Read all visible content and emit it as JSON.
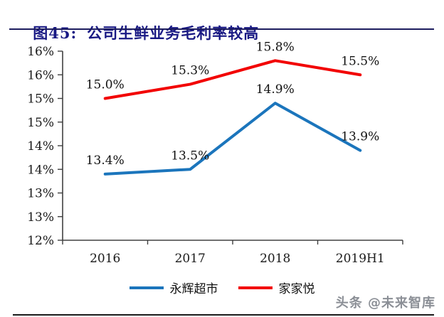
{
  "header": {
    "figure_no": "图45:",
    "title": "公司生鲜业务毛利率较高",
    "accent_color": "#191984"
  },
  "watermark": {
    "text": "头条 @未来智库",
    "color": "#8B8F96"
  },
  "chart_data": {
    "type": "line",
    "title": "公司生鲜业务毛利率较高",
    "categories": [
      "2016",
      "2017",
      "2018",
      "2019H1"
    ],
    "series": [
      {
        "name": "永辉超市",
        "color": "#1B75BC",
        "values": [
          13.4,
          13.5,
          14.9,
          13.9
        ],
        "labels": [
          "13.4%",
          "13.5%",
          "14.9%",
          "13.9%"
        ]
      },
      {
        "name": "家家悦",
        "color": "#F20000",
        "values": [
          15.0,
          15.3,
          15.8,
          15.5
        ],
        "labels": [
          "15.0%",
          "15.3%",
          "15.8%",
          "15.5%"
        ]
      }
    ],
    "y_axis": {
      "min": 12,
      "max": 16,
      "tick_step": 0.5,
      "tick_labels": [
        "16%",
        "16%",
        "15%",
        "15%",
        "14%",
        "14%",
        "13%",
        "13%",
        "12%"
      ]
    },
    "x_axis_label": "",
    "y_axis_label": "",
    "grid": false,
    "legend_position": "bottom",
    "axis_color": "#404040"
  }
}
